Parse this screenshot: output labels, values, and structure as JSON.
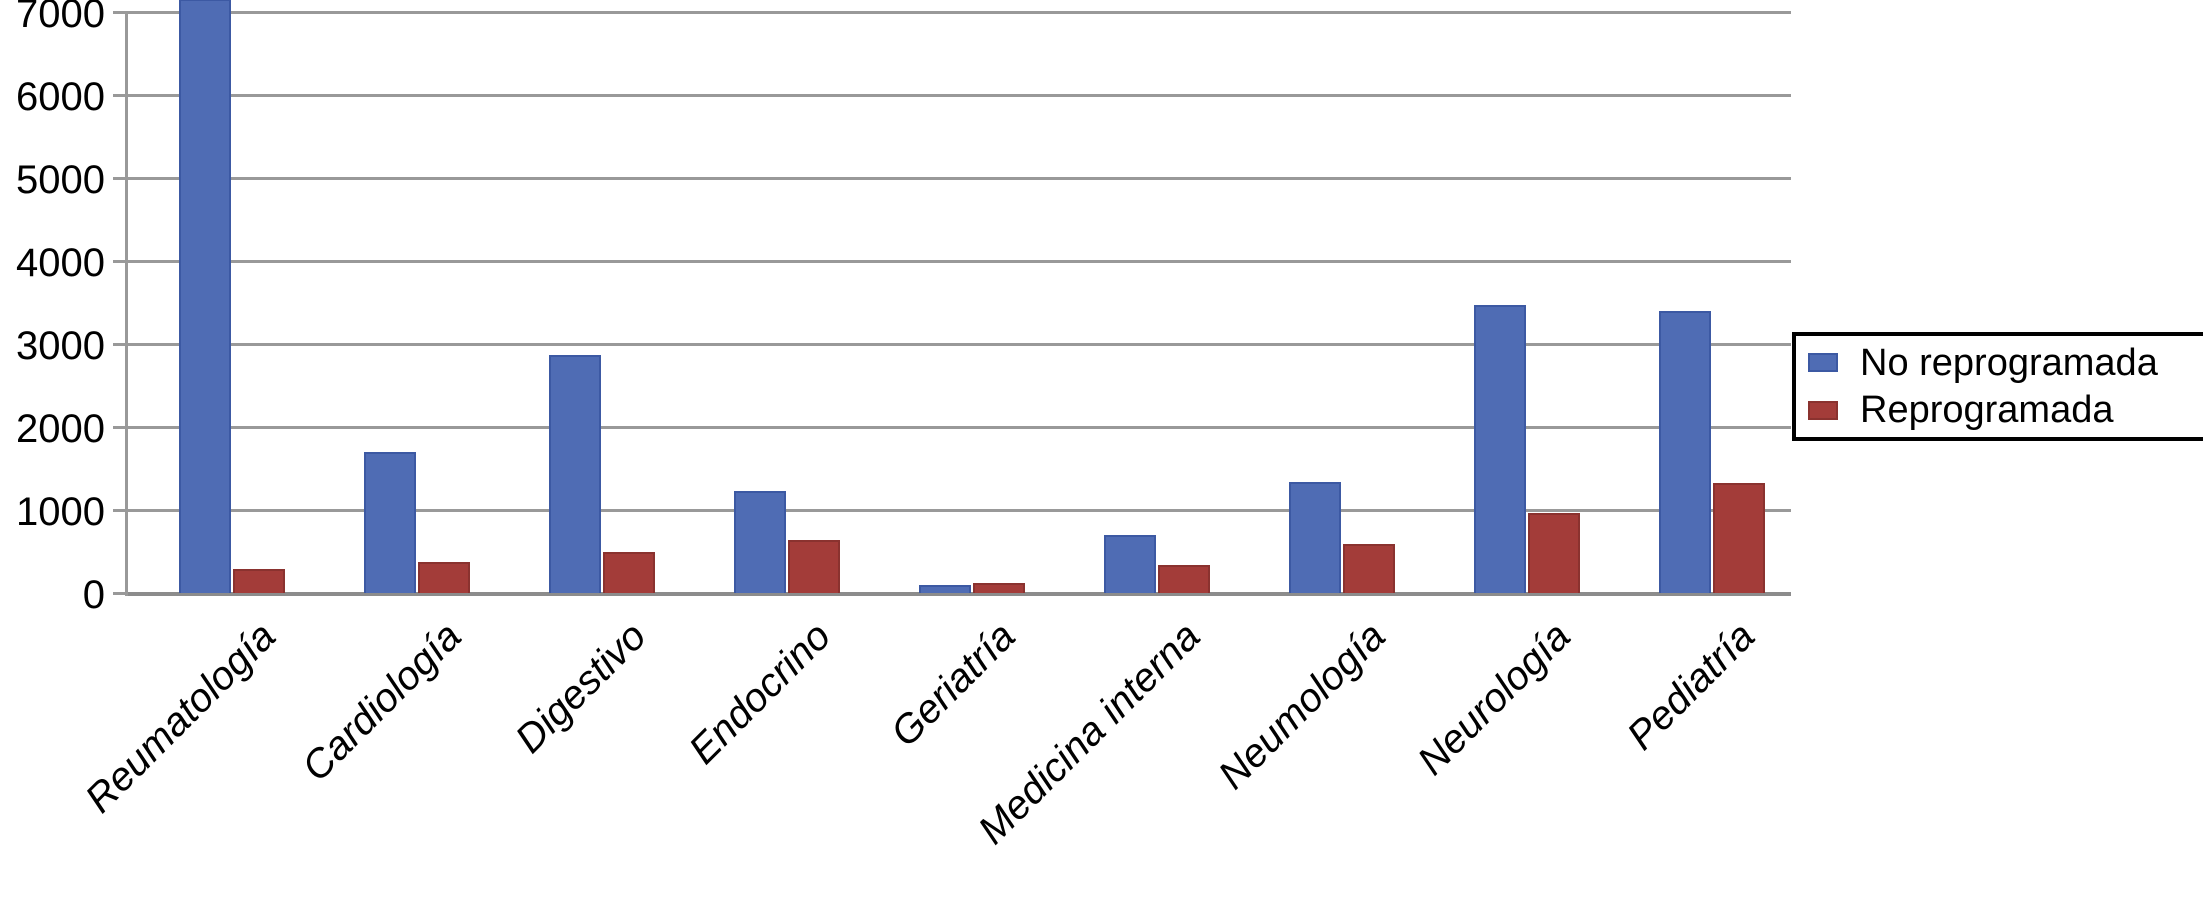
{
  "figure": {
    "background": "#ffffff",
    "text_color": "#000000"
  },
  "chart_data": {
    "type": "bar",
    "title": "",
    "xlabel": "",
    "ylabel": "",
    "categories": [
      "Reumatología",
      "Cardiología",
      "Digestivo",
      "Endocrino",
      "Geriatría",
      "Medicina interna",
      "Neumología",
      "Neurología",
      "Pediatría"
    ],
    "series": [
      {
        "name": "No reprogramada",
        "color": "#4F6CB4",
        "border_color": "#3C59A3",
        "values": [
          7160,
          1700,
          2870,
          1230,
          100,
          700,
          1340,
          3470,
          3400
        ]
      },
      {
        "name": "Reprogramada",
        "color": "#A33C39",
        "border_color": "#8A322F",
        "values": [
          290,
          370,
          490,
          640,
          120,
          340,
          590,
          960,
          1320
        ]
      }
    ],
    "ylim": [
      0,
      7000
    ],
    "yticks": [
      0,
      1000,
      2000,
      3000,
      4000,
      5000,
      6000,
      7000
    ],
    "ytick_labels": [
      "0",
      "1000",
      "2000",
      "3000",
      "4000",
      "5000",
      "6000",
      "7000"
    ],
    "grid": true,
    "gridline_color": "#999999",
    "axis_color": "#8C8C8C",
    "legend_position": "right",
    "legend_border_color": "#000000",
    "legend_background": "#ffffff"
  }
}
